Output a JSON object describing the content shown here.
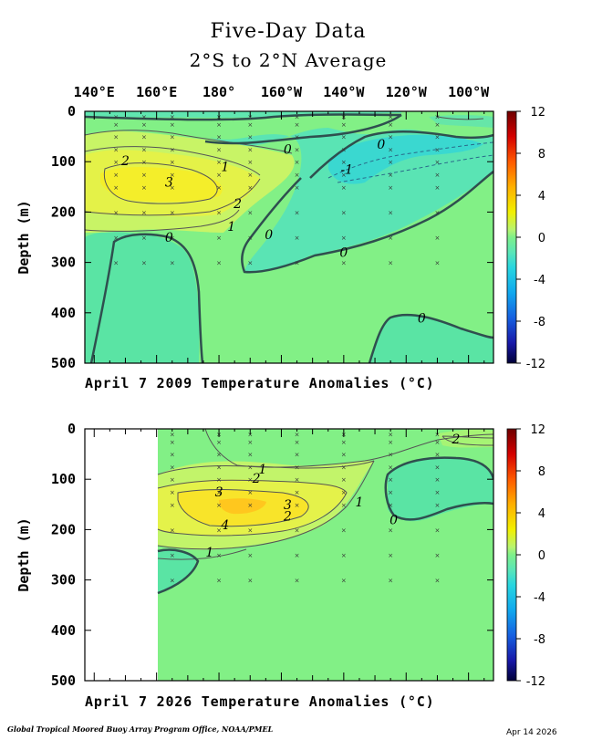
{
  "header": {
    "title": "Five-Day Data",
    "subtitle": "2°S to 2°N Average"
  },
  "chart_data": [
    {
      "type": "heatmap",
      "caption": "April 7 2009 Temperature Anomalies (°C)",
      "ylabel": "Depth (m)",
      "x_tick_labels": [
        "140°E",
        "160°E",
        "180°",
        "160°W",
        "140°W",
        "120°W",
        "100°W"
      ],
      "x_ticks_lon_east": [
        140,
        160,
        180,
        200,
        220,
        240,
        260
      ],
      "xlim_lon_east": [
        137,
        268
      ],
      "y_ticks": [
        0,
        100,
        200,
        300,
        400,
        500
      ],
      "ylim": [
        0,
        500
      ],
      "colorbar": {
        "ticks": [
          12,
          8,
          4,
          0,
          -4,
          -8,
          -12
        ],
        "range": [
          -12,
          12
        ]
      },
      "contour_labels": [
        {
          "text": "0",
          "lon": 202,
          "depth": 75
        },
        {
          "text": "0",
          "lon": 232,
          "depth": 65
        },
        {
          "text": "-1",
          "lon": 221,
          "depth": 115
        },
        {
          "text": "2",
          "lon": 150,
          "depth": 98
        },
        {
          "text": "1",
          "lon": 182,
          "depth": 110
        },
        {
          "text": "3",
          "lon": 164,
          "depth": 140
        },
        {
          "text": "2",
          "lon": 186,
          "depth": 183
        },
        {
          "text": "1",
          "lon": 184,
          "depth": 228
        },
        {
          "text": "0",
          "lon": 164,
          "depth": 250
        },
        {
          "text": "0",
          "lon": 196,
          "depth": 245
        },
        {
          "text": "0",
          "lon": 220,
          "depth": 280
        },
        {
          "text": "0",
          "lon": 245,
          "depth": 410
        }
      ]
    },
    {
      "type": "heatmap",
      "caption": "April 7 2026 Temperature Anomalies (°C)",
      "ylabel": "Depth (m)",
      "x_ticks_lon_east": [
        140,
        160,
        180,
        200,
        220,
        240,
        260
      ],
      "xlim_lon_east": [
        137,
        268
      ],
      "data_start_lon_east": 160,
      "y_ticks": [
        0,
        100,
        200,
        300,
        400,
        500
      ],
      "ylim": [
        0,
        500
      ],
      "colorbar": {
        "ticks": [
          12,
          8,
          4,
          0,
          -4,
          -8,
          -12
        ],
        "range": [
          -12,
          12
        ]
      },
      "contour_labels": [
        {
          "text": "2",
          "lon": 256,
          "depth": 20
        },
        {
          "text": "1",
          "lon": 194,
          "depth": 80
        },
        {
          "text": "2",
          "lon": 192,
          "depth": 98
        },
        {
          "text": "3",
          "lon": 180,
          "depth": 125
        },
        {
          "text": "3",
          "lon": 202,
          "depth": 150
        },
        {
          "text": "2",
          "lon": 202,
          "depth": 173
        },
        {
          "text": "4",
          "lon": 182,
          "depth": 190
        },
        {
          "text": "1",
          "lon": 225,
          "depth": 145
        },
        {
          "text": "0",
          "lon": 236,
          "depth": 180
        },
        {
          "text": "1",
          "lon": 177,
          "depth": 245
        }
      ]
    }
  ],
  "footer": {
    "credit": "Global Tropical Moored Buoy Array Program Office, NOAA/PMEL",
    "date": "Apr 14 2026"
  }
}
